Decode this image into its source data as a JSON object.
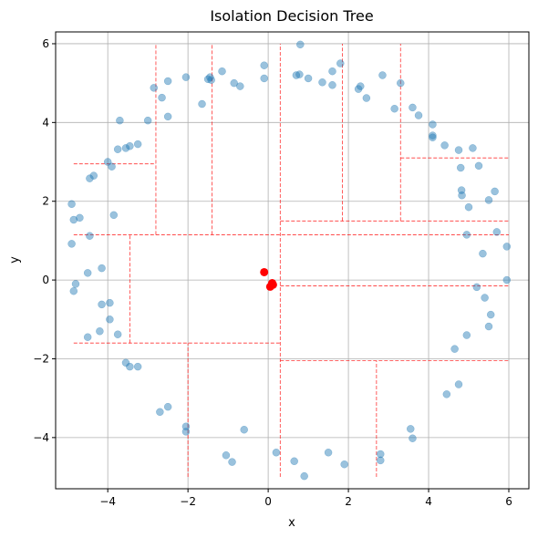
{
  "chart_data": {
    "type": "scatter",
    "title": "Isolation Decision Tree",
    "xlabel": "x",
    "ylabel": "y",
    "xlim": [
      -5.3,
      6.5
    ],
    "ylim": [
      -5.3,
      6.3
    ],
    "xticks": [
      -4,
      -2,
      0,
      2,
      4,
      6
    ],
    "yticks": [
      -4,
      -2,
      0,
      2,
      4,
      6
    ],
    "xtick_labels": [
      "−4",
      "−2",
      "0",
      "2",
      "4",
      "6"
    ],
    "ytick_labels": [
      "−4",
      "−2",
      "0",
      "2",
      "4",
      "6"
    ],
    "grid": true,
    "colors": {
      "points": "#1f77b4",
      "highlight": "#ff0000",
      "splits": "#ff0000",
      "grid": "#b0b0b0"
    },
    "series": [
      {
        "points": [
          [
            -0.1,
            5.45
          ],
          [
            0.8,
            5.98
          ],
          [
            1.8,
            5.5
          ],
          [
            -2.05,
            5.15
          ],
          [
            -1.5,
            5.1
          ],
          [
            -1.15,
            5.3
          ],
          [
            -0.85,
            5.0
          ],
          [
            -0.7,
            4.92
          ],
          [
            -0.1,
            5.12
          ],
          [
            0.7,
            5.2
          ],
          [
            0.78,
            5.22
          ],
          [
            1.0,
            5.12
          ],
          [
            1.35,
            5.02
          ],
          [
            1.6,
            4.95
          ],
          [
            1.6,
            5.3
          ],
          [
            2.25,
            4.85
          ],
          [
            2.3,
            4.92
          ],
          [
            2.45,
            4.62
          ],
          [
            2.85,
            5.2
          ],
          [
            3.3,
            5.0
          ],
          [
            3.15,
            4.35
          ],
          [
            3.6,
            4.38
          ],
          [
            3.75,
            4.18
          ],
          [
            4.1,
            3.95
          ],
          [
            4.1,
            3.67
          ],
          [
            4.1,
            3.62
          ],
          [
            4.4,
            3.42
          ],
          [
            4.75,
            3.3
          ],
          [
            5.1,
            3.35
          ],
          [
            4.8,
            2.85
          ],
          [
            5.25,
            2.9
          ],
          [
            4.82,
            2.28
          ],
          [
            4.83,
            2.15
          ],
          [
            5.5,
            2.03
          ],
          [
            5.65,
            2.25
          ],
          [
            5.0,
            1.85
          ],
          [
            4.95,
            1.15
          ],
          [
            5.7,
            1.22
          ],
          [
            5.95,
            0.85
          ],
          [
            5.35,
            0.67
          ],
          [
            5.95,
            0.0
          ],
          [
            5.2,
            -0.18
          ],
          [
            5.4,
            -0.45
          ],
          [
            5.55,
            -0.88
          ],
          [
            5.5,
            -1.18
          ],
          [
            4.95,
            -1.4
          ],
          [
            4.65,
            -1.75
          ],
          [
            4.75,
            -2.65
          ],
          [
            4.45,
            -2.9
          ],
          [
            3.55,
            -3.78
          ],
          [
            3.6,
            -4.02
          ],
          [
            2.8,
            -4.42
          ],
          [
            2.8,
            -4.58
          ],
          [
            1.9,
            -4.68
          ],
          [
            1.5,
            -4.38
          ],
          [
            0.65,
            -4.6
          ],
          [
            0.9,
            -4.98
          ],
          [
            0.2,
            -4.38
          ],
          [
            -0.6,
            -3.8
          ],
          [
            -0.9,
            -4.62
          ],
          [
            -1.05,
            -4.45
          ],
          [
            -2.05,
            -3.72
          ],
          [
            -2.05,
            -3.85
          ],
          [
            -2.5,
            -3.22
          ],
          [
            -2.7,
            -3.35
          ],
          [
            -3.25,
            -2.2
          ],
          [
            -3.45,
            -2.2
          ],
          [
            -3.55,
            -2.1
          ],
          [
            -3.75,
            -1.38
          ],
          [
            -3.95,
            -1.0
          ],
          [
            -3.95,
            -0.58
          ],
          [
            -4.15,
            -0.62
          ],
          [
            -4.2,
            -1.3
          ],
          [
            -4.5,
            -1.45
          ],
          [
            -4.8,
            -0.1
          ],
          [
            -4.85,
            -0.28
          ],
          [
            -4.5,
            0.18
          ],
          [
            -4.15,
            0.3
          ],
          [
            -3.85,
            1.65
          ],
          [
            -4.45,
            1.12
          ],
          [
            -4.7,
            1.58
          ],
          [
            -4.85,
            1.53
          ],
          [
            -4.9,
            0.92
          ],
          [
            -4.9,
            1.93
          ],
          [
            -4.35,
            2.65
          ],
          [
            -4.45,
            2.58
          ],
          [
            -4.0,
            3.0
          ],
          [
            -3.9,
            2.88
          ],
          [
            -3.75,
            3.32
          ],
          [
            -3.55,
            3.35
          ],
          [
            -3.45,
            3.4
          ],
          [
            -3.25,
            3.45
          ],
          [
            -3.0,
            4.05
          ],
          [
            -3.7,
            4.05
          ],
          [
            -2.85,
            4.88
          ],
          [
            -2.65,
            4.63
          ],
          [
            -2.5,
            5.05
          ],
          [
            -2.5,
            4.15
          ],
          [
            -1.65,
            4.47
          ],
          [
            -1.45,
            5.15
          ],
          [
            -1.42,
            5.08
          ]
        ]
      },
      {
        "points": [
          [
            -0.1,
            0.2
          ],
          [
            0.1,
            -0.08
          ],
          [
            0.05,
            -0.17
          ],
          [
            0.12,
            -0.12
          ]
        ]
      }
    ],
    "split_lines": [
      [
        [
          0.3,
          0.3
        ],
        [
          -5.0,
          6.0
        ]
      ],
      [
        [
          -4.85,
          6.0
        ],
        [
          1.15,
          1.15
        ]
      ],
      [
        [
          -2.8,
          -2.8
        ],
        [
          1.15,
          6.0
        ]
      ],
      [
        [
          -1.4,
          -1.4
        ],
        [
          1.15,
          6.0
        ]
      ],
      [
        [
          -4.85,
          -2.8
        ],
        [
          2.95,
          2.95
        ]
      ],
      [
        [
          1.85,
          1.85
        ],
        [
          1.5,
          6.0
        ]
      ],
      [
        [
          3.3,
          3.3
        ],
        [
          1.5,
          6.0
        ]
      ],
      [
        [
          0.3,
          6.0
        ],
        [
          1.5,
          1.5
        ]
      ],
      [
        [
          3.3,
          6.0
        ],
        [
          3.1,
          3.1
        ]
      ],
      [
        [
          0.3,
          6.0
        ],
        [
          -0.15,
          -0.15
        ]
      ],
      [
        [
          -3.45,
          -3.45
        ],
        [
          -1.6,
          1.15
        ]
      ],
      [
        [
          -4.85,
          0.3
        ],
        [
          -1.6,
          -1.6
        ]
      ],
      [
        [
          -2.0,
          -2.0
        ],
        [
          -5.0,
          -1.6
        ]
      ],
      [
        [
          0.3,
          6.0
        ],
        [
          -2.05,
          -2.05
        ]
      ],
      [
        [
          2.7,
          2.7
        ],
        [
          -5.0,
          -2.05
        ]
      ]
    ]
  }
}
